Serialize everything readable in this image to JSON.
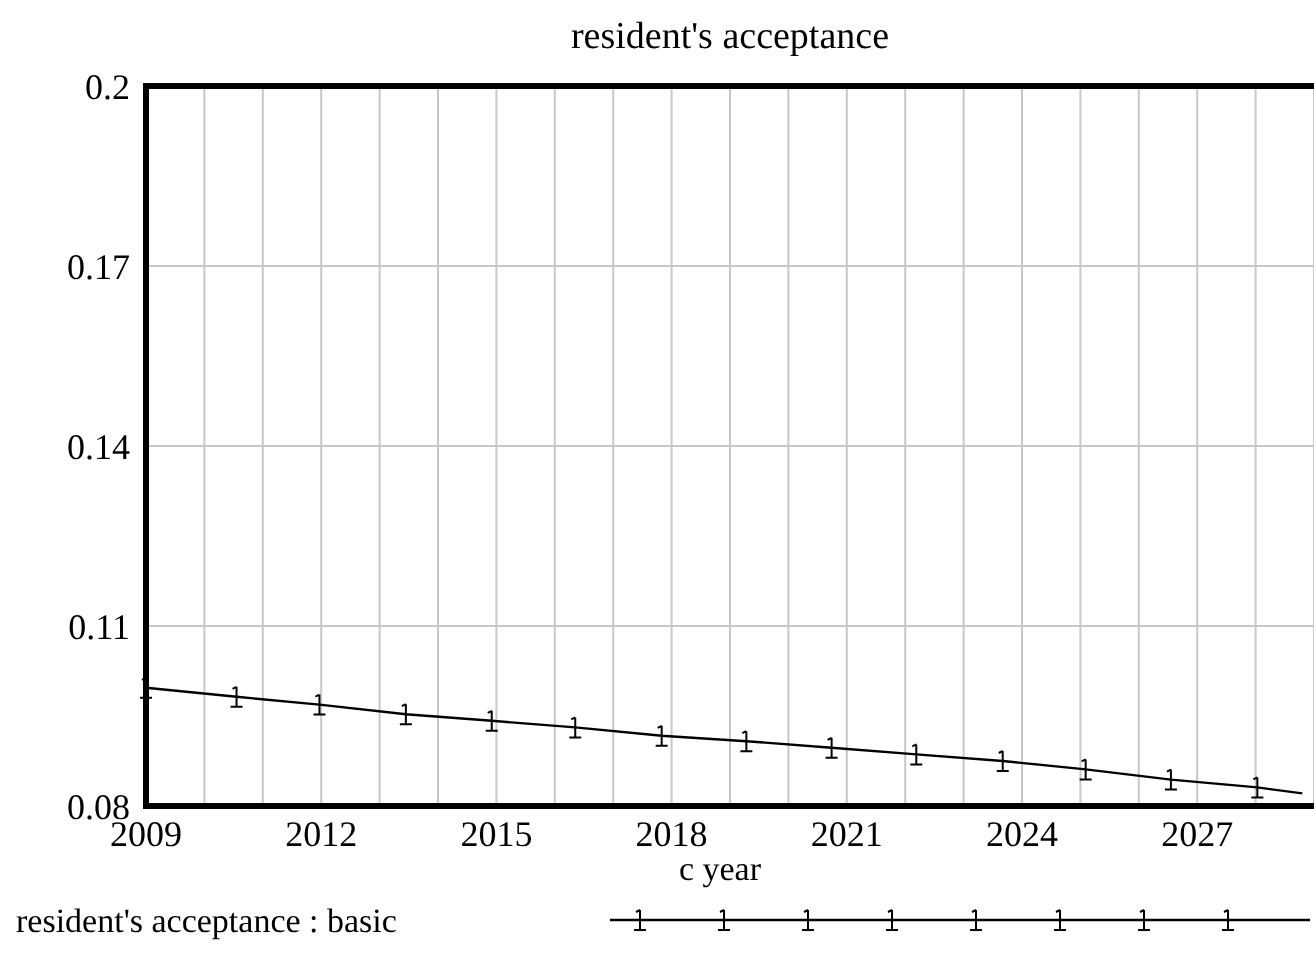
{
  "chart_data": {
    "type": "line",
    "title": "resident's acceptance",
    "xlabel": "c year",
    "x": [
      2009,
      2010.55,
      2011.97,
      2013.45,
      2014.92,
      2016.35,
      2017.83,
      2019.28,
      2020.74,
      2022.19,
      2023.67,
      2025.09,
      2026.55,
      2028.03,
      2028.8
    ],
    "series": [
      {
        "name": "resident's acceptance : basic",
        "color": "#000000",
        "values": [
          0.0997,
          0.0982,
          0.0969,
          0.0953,
          0.0942,
          0.0931,
          0.0917,
          0.0908,
          0.0897,
          0.0886,
          0.0875,
          0.0861,
          0.0844,
          0.0831,
          0.0821
        ]
      }
    ],
    "xlim": [
      2009,
      2029
    ],
    "xticks": [
      2009,
      2012,
      2015,
      2018,
      2021,
      2024,
      2027
    ],
    "ylim": [
      0.08,
      0.2
    ],
    "yticks": [
      0.08,
      0.11,
      0.14,
      0.17,
      0.2
    ],
    "grid": true,
    "legend": "bottom",
    "marker": "cross",
    "line_style": "solid"
  }
}
